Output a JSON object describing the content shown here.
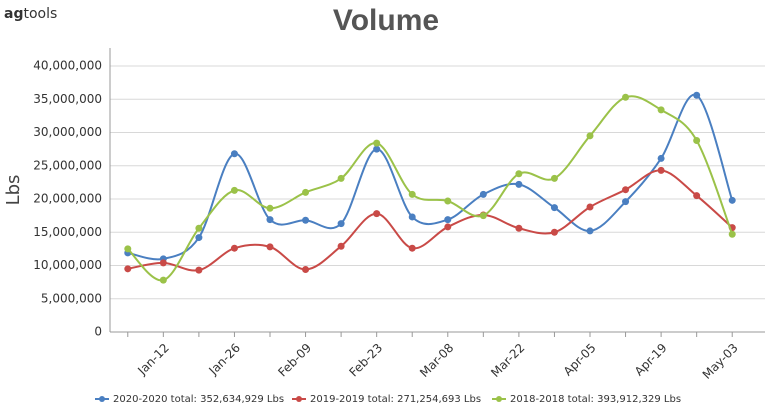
{
  "brand": {
    "bold": "ag",
    "rest": "tools"
  },
  "chart_data": {
    "type": "line",
    "title": "Volume",
    "y_label": "Lbs",
    "categories": [
      null,
      "Jan-12",
      null,
      "Jan-26",
      null,
      "Feb-09",
      null,
      "Feb-23",
      null,
      "Mar-08",
      null,
      "Mar-22",
      null,
      "Apr-05",
      null,
      "Apr-19",
      null,
      "May-03"
    ],
    "series": [
      {
        "name": "2020-2020 total: 352,634,929 Lbs",
        "color": "#4a7fc1",
        "values": [
          11900000,
          11000000,
          14200000,
          26800000,
          16900000,
          16800000,
          16300000,
          27500000,
          17300000,
          16900000,
          20700000,
          22200000,
          18700000,
          15200000,
          19600000,
          26100000,
          35600000,
          19800000
        ]
      },
      {
        "name": "2019-2019 total: 271,254,693 Lbs",
        "color": "#c94a47",
        "values": [
          9500000,
          10400000,
          9300000,
          12600000,
          12800000,
          9400000,
          12900000,
          17800000,
          12600000,
          15800000,
          17600000,
          15600000,
          15000000,
          18800000,
          21400000,
          24300000,
          20500000,
          15700000
        ]
      },
      {
        "name": "2018-2018 total: 393,912,329 Lbs",
        "color": "#9bc249",
        "values": [
          12500000,
          7800000,
          15600000,
          21300000,
          18600000,
          21000000,
          23100000,
          28400000,
          20700000,
          19700000,
          17500000,
          23800000,
          23100000,
          29500000,
          35300000,
          33400000,
          28800000,
          14700000
        ]
      }
    ],
    "ylim": [
      0,
      40000000
    ],
    "yticks": [
      0,
      {
        "value": 5000000,
        "label": "5,000,000"
      },
      {
        "value": 10000000,
        "label": "10,000,000"
      },
      {
        "value": 15000000,
        "label": "15,000,000"
      },
      {
        "value": 20000000,
        "label": "20,000,000"
      },
      {
        "value": 25000000,
        "label": "25,000,000"
      },
      {
        "value": 30000000,
        "label": "30,000,000"
      },
      {
        "value": 35000000,
        "label": "35,000,000"
      },
      {
        "value": 40000000,
        "label": "40,000,000"
      }
    ],
    "grid": true,
    "smooth": true,
    "legend": "bottom"
  }
}
